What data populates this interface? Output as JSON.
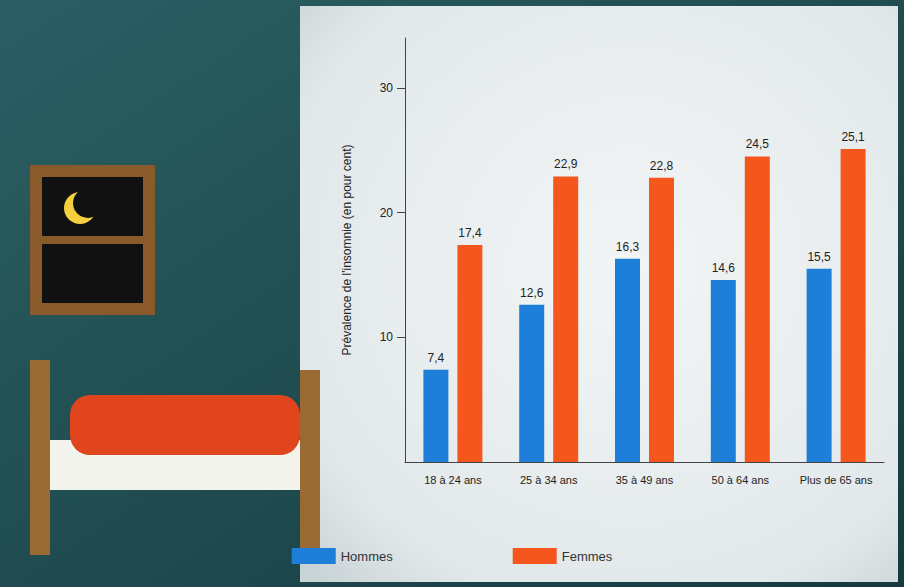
{
  "chart_data": {
    "type": "bar",
    "y_label": "Prévalence de l'insomnie (en pour cent)",
    "categories": [
      "18 à 24 ans",
      "25 à 34 ans",
      "35 à 49 ans",
      "50 à 64 ans",
      "Plus de 65 ans"
    ],
    "series": [
      {
        "name": "Hommes",
        "color": "#1e7fd8",
        "values": [
          7.4,
          12.6,
          16.3,
          14.6,
          15.5
        ],
        "value_labels": [
          "7,4",
          "12,6",
          "16,3",
          "14,6",
          "15,5"
        ]
      },
      {
        "name": "Femmes",
        "color": "#f4561c",
        "values": [
          17.4,
          22.9,
          22.8,
          24.5,
          25.1
        ],
        "value_labels": [
          "17,4",
          "22,9",
          "22,8",
          "24,5",
          "25,1"
        ]
      }
    ],
    "ylim": [
      0,
      34
    ],
    "yticks": [
      10,
      20,
      30
    ],
    "grid": false,
    "legend": "bottom",
    "data_labels": true
  }
}
